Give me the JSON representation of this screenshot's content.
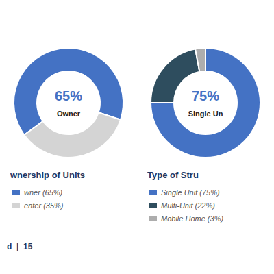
{
  "chart_data": [
    {
      "type": "pie",
      "title": "wnership of Units",
      "categories": [
        "wner (65%)",
        "enter (35%)"
      ],
      "values": [
        65,
        35
      ],
      "colors": [
        "#4472C4",
        "#D4D4D4"
      ],
      "annotations": [
        "65%",
        "Owner",
        "d  |  15"
      ]
    },
    {
      "type": "pie",
      "title": "Type of Stru",
      "categories": [
        "Single Unit (75%)",
        "Multi-Unit (22%)",
        "Mobile Home (3%)"
      ],
      "values": [
        75,
        22,
        3
      ],
      "colors": [
        "#4472C4",
        "#2E4D5E",
        "#ADADAD"
      ],
      "annotations": [
        "75%",
        "Single Un"
      ]
    }
  ]
}
